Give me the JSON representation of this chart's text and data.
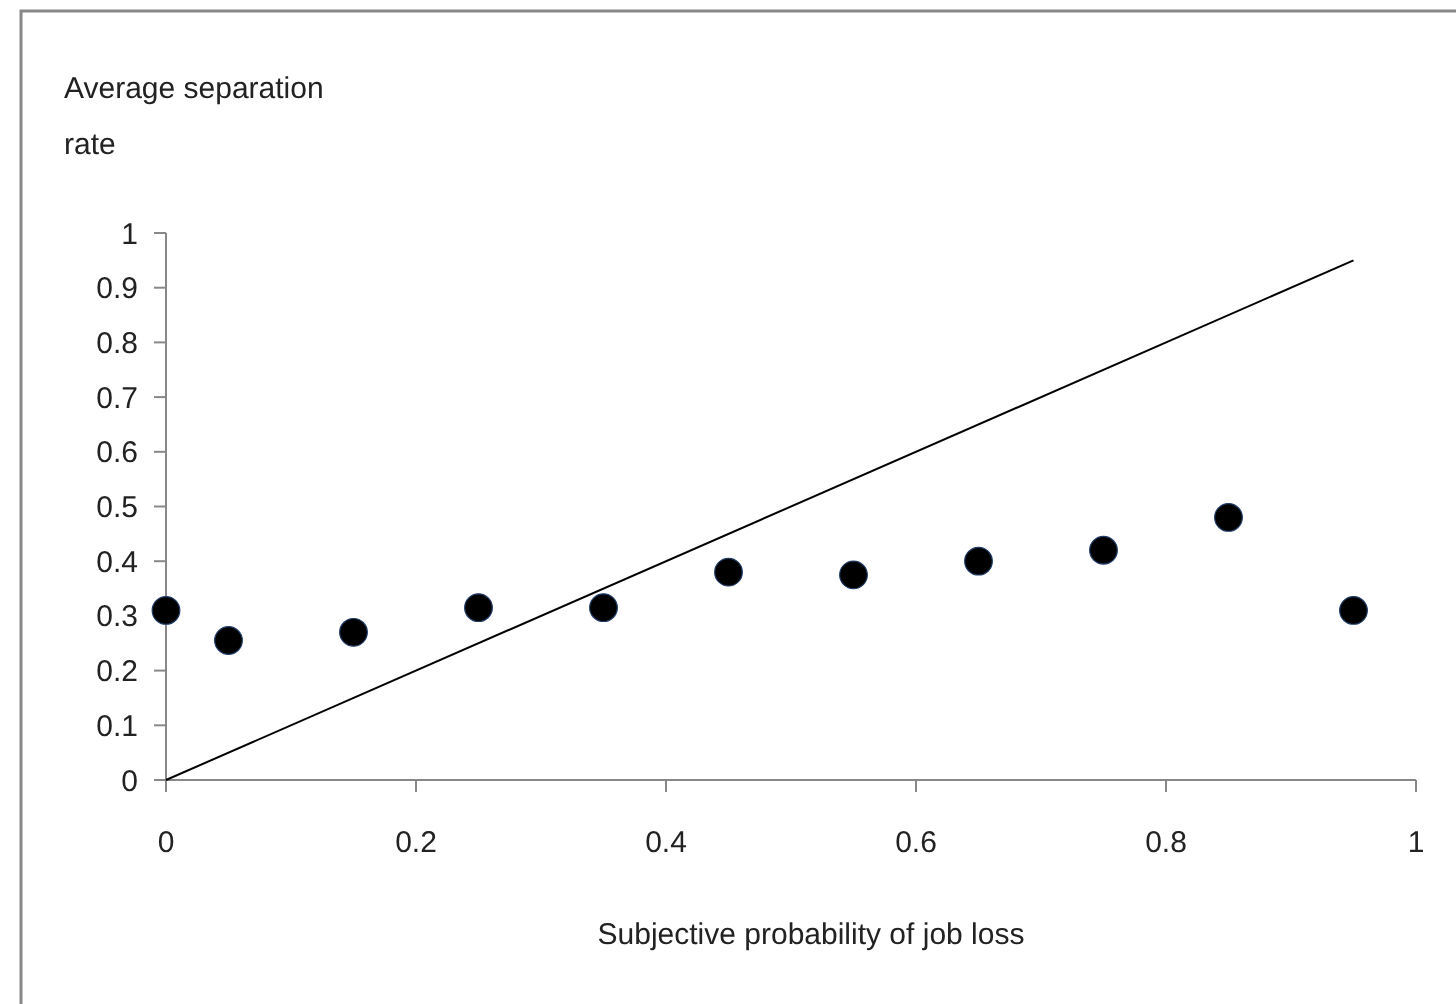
{
  "chart_data": {
    "type": "scatter",
    "xlabel": "Subjective probability of job loss",
    "ylabel": "Average separation rate",
    "x": [
      0,
      0.05,
      0.15,
      0.25,
      0.35,
      0.45,
      0.55,
      0.65,
      0.75,
      0.85,
      0.95
    ],
    "series": [
      {
        "color": "#000000",
        "marker": "circle",
        "values": [
          0.31,
          0.255,
          0.27,
          0.315,
          0.315,
          0.38,
          0.375,
          0.4,
          0.42,
          0.48,
          0.31
        ]
      },
      {
        "type": "line",
        "color": "#000000",
        "x": [
          0,
          0.95
        ],
        "values": [
          0,
          0.95
        ]
      }
    ],
    "xlim": [
      0,
      1
    ],
    "xticks": [
      0,
      0.2,
      0.4,
      0.6,
      0.8,
      1
    ],
    "ylim": [
      0,
      1
    ],
    "yticks": [
      0,
      0.1,
      0.2,
      0.3,
      0.4,
      0.5,
      0.6,
      0.7,
      0.8,
      0.9,
      1
    ],
    "grid": false
  }
}
